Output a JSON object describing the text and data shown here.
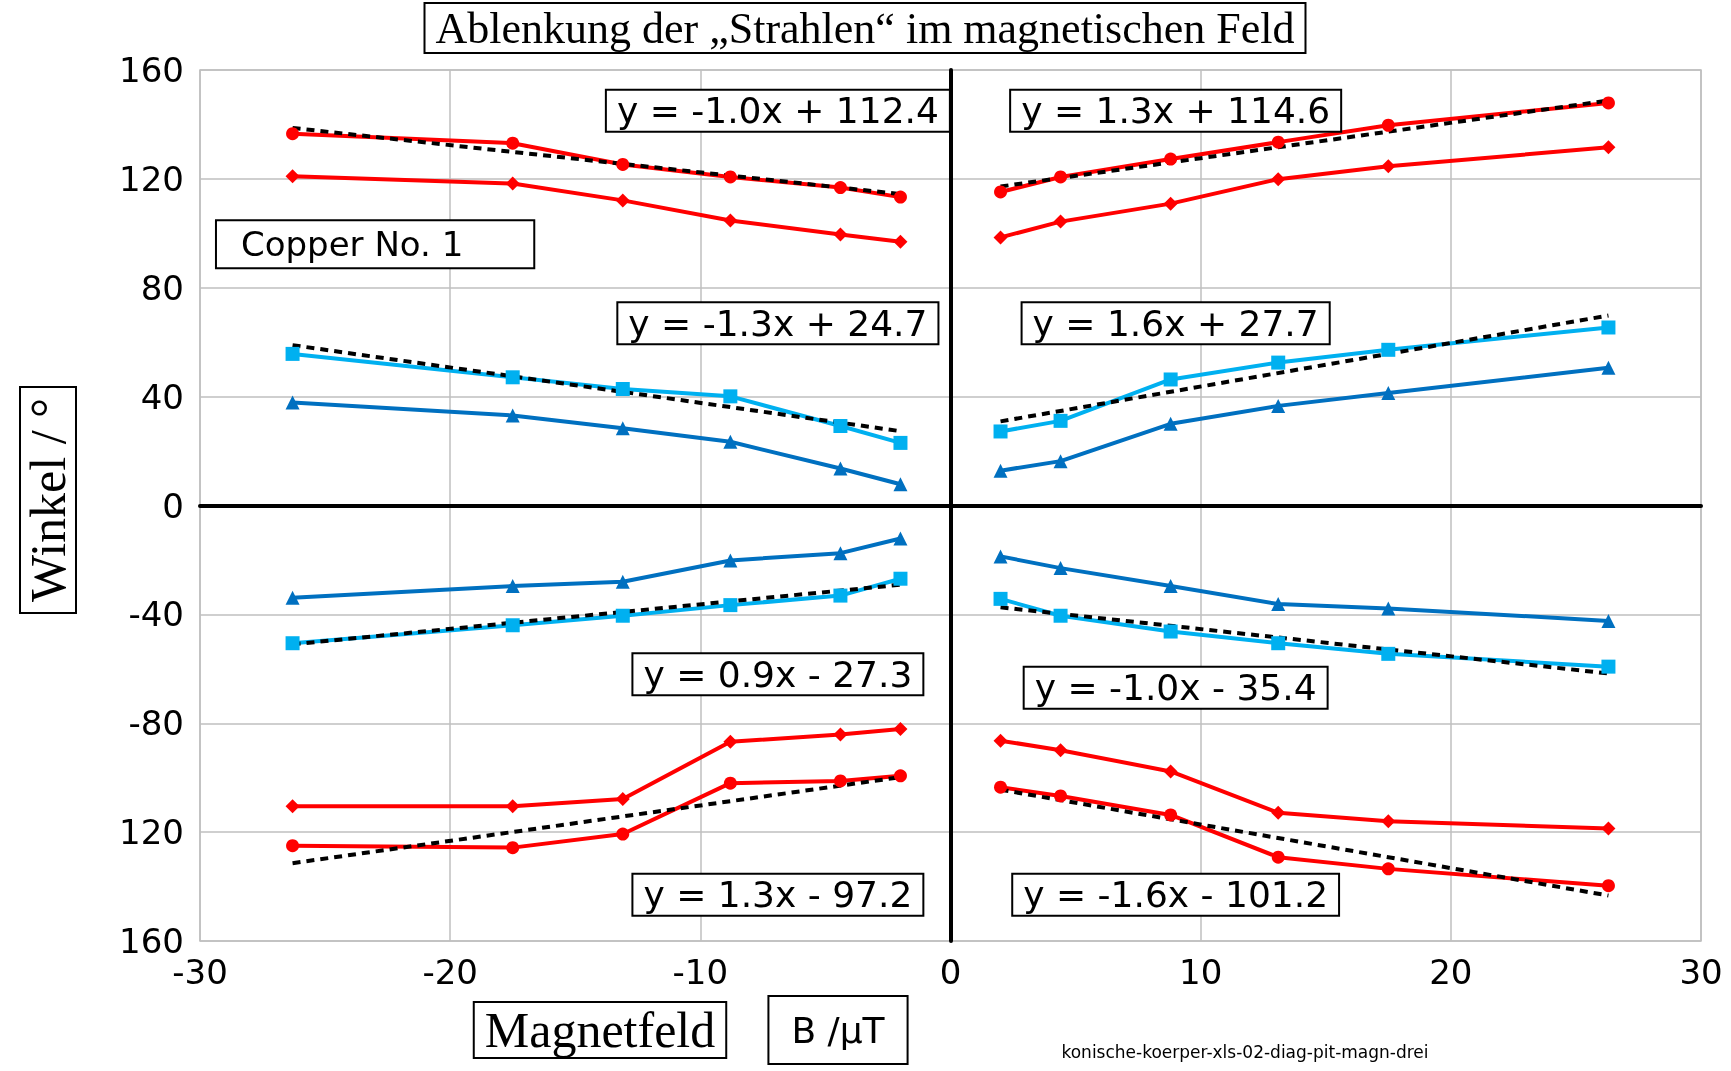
{
  "chart_data": {
    "type": "line",
    "title": "Ablenkung der „Strahlen“ im magnetischen Feld",
    "xlabel": "Magnetfeld",
    "ylabel": "Winkel / °",
    "x": [
      -26.3,
      -17.5,
      -13.1,
      -8.8,
      -4.4,
      -2.0,
      0,
      2.0,
      4.4,
      8.8,
      13.1,
      17.5,
      26.3
    ],
    "series": [
      {
        "color": "#ff0000",
        "marker": "circle",
        "values": [
          136.6,
          133.1,
          125.3,
          120.7,
          116.8,
          113.3,
          null,
          115.2,
          120.7,
          127.3,
          133.5,
          139.7,
          147.9
        ]
      },
      {
        "color": "#ff0000",
        "marker": "diamond",
        "values": [
          121,
          118.3,
          112.1,
          104.7,
          99.6,
          96.9,
          null,
          98.5,
          104.3,
          110.9,
          119.9,
          124.6,
          131.6
        ]
      },
      {
        "color": "#00b0f0",
        "marker": "square",
        "values": [
          55.7,
          47.1,
          42.8,
          40.1,
          29.2,
          23,
          null,
          27.2,
          31.1,
          46.3,
          52.5,
          57.2,
          65.4
        ]
      },
      {
        "color": "#0070c0",
        "marker": "triangle",
        "values": [
          37.8,
          33.1,
          28.4,
          23.4,
          13.6,
          7.8,
          null,
          12.8,
          16.3,
          30,
          36.6,
          41.3,
          50.6
        ]
      },
      {
        "color": "#0070c0",
        "marker": "triangle",
        "values": [
          -33.9,
          -29.6,
          -28,
          -20.2,
          -17.5,
          -12.1,
          null,
          -18.7,
          -23,
          -29.6,
          -36.2,
          -37.8,
          -42.4
        ]
      },
      {
        "color": "#00b0f0",
        "marker": "square",
        "values": [
          -50.6,
          -44,
          -40.5,
          -36.6,
          -33.1,
          -26.9,
          null,
          -34.3,
          -40.5,
          -46.3,
          -50.6,
          -54.5,
          -59.2
        ]
      },
      {
        "color": "#ff0000",
        "marker": "diamond",
        "values": [
          -110.5,
          -110.5,
          -107.8,
          -86.8,
          -84.1,
          -82.1,
          null,
          -86.4,
          -89.9,
          -97.7,
          -112.9,
          -116,
          -118.7
        ]
      },
      {
        "color": "#ff0000",
        "marker": "circle",
        "values": [
          -125,
          -125.7,
          -120.7,
          -102,
          -101.2,
          -99.3,
          null,
          -103.5,
          -106.7,
          -113.7,
          -129.2,
          -133.5,
          -139.7
        ]
      },
      {
        "color": "#000000",
        "marker": "none",
        "line_style": "dashed",
        "x": [
          -26.3,
          -2.0,
          0,
          2.0,
          26.3
        ],
        "values": [
          138.7,
          114.4,
          null,
          117.2,
          148.8
        ]
      },
      {
        "color": "#000000",
        "marker": "none",
        "line_style": "dashed",
        "x": [
          -26.3,
          -2.0,
          0,
          2.0,
          26.3
        ],
        "values": [
          58.9,
          27.3,
          null,
          30.9,
          69.8
        ]
      },
      {
        "color": "#000000",
        "marker": "none",
        "line_style": "dashed",
        "x": [
          -26.3,
          -2.0,
          0,
          2.0,
          26.3
        ],
        "values": [
          -51,
          -29.1,
          null,
          -37.4,
          -61.7
        ]
      },
      {
        "color": "#000000",
        "marker": "none",
        "line_style": "dashed",
        "x": [
          -26.3,
          -2.0,
          0,
          2.0,
          26.3
        ],
        "values": [
          -131.4,
          -99.8,
          null,
          -104.4,
          -143.3
        ]
      }
    ],
    "xlim": [
      -30,
      30
    ],
    "xticks": [
      -30,
      -20,
      -10,
      0,
      10,
      20,
      30
    ],
    "ylim": [
      -160,
      160
    ],
    "yticks": [
      {
        "value": -160,
        "label": "160"
      },
      {
        "value": -120,
        "label": "120"
      },
      -80,
      -40,
      0,
      40,
      80,
      120,
      160
    ],
    "grid": true,
    "line_style": "solid",
    "annotations": [
      "y = -1.0x + 112.4",
      "y = 1.3x + 114.6",
      "y = -1.3x + 24.7",
      "y = 1.6x + 27.7",
      "y = 0.9x - 27.3",
      "y = -1.0x - 35.4",
      "y = 1.3x - 97.2",
      "y = -1.6x - 101.2",
      "Copper No. 1",
      "B /µT",
      "konische-koerper-xls-02-diag-pit-magn-drei"
    ]
  }
}
